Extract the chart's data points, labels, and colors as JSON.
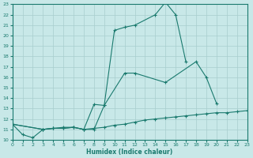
{
  "xlabel": "Humidex (Indice chaleur)",
  "series1_x": [
    0,
    1,
    2,
    3,
    4,
    5,
    6,
    7,
    8,
    9,
    10,
    11,
    12,
    14,
    15,
    16,
    17
  ],
  "series1_y": [
    11.5,
    10.5,
    10.2,
    11.0,
    11.1,
    11.1,
    11.2,
    11.0,
    13.4,
    13.3,
    20.5,
    20.8,
    21.0,
    22.0,
    23.2,
    22.0,
    17.5
  ],
  "series2_x": [
    0,
    3,
    4,
    5,
    6,
    7,
    8,
    9,
    11,
    12,
    15,
    18,
    19,
    20
  ],
  "series2_y": [
    11.5,
    11.0,
    11.1,
    11.2,
    11.2,
    11.0,
    11.0,
    13.3,
    16.4,
    16.4,
    15.5,
    17.5,
    16.0,
    13.5
  ],
  "series3_x": [
    0,
    3,
    4,
    5,
    6,
    7,
    8,
    9,
    10,
    11,
    12,
    13,
    14,
    15,
    16,
    17,
    18,
    19,
    20,
    21,
    22,
    23
  ],
  "series3_y": [
    11.5,
    11.0,
    11.1,
    11.1,
    11.2,
    11.0,
    11.1,
    11.2,
    11.4,
    11.5,
    11.7,
    11.9,
    12.0,
    12.1,
    12.2,
    12.3,
    12.4,
    12.5,
    12.6,
    12.6,
    12.7,
    12.8
  ],
  "color": "#1a7a6e",
  "bg_color": "#c8e8e8",
  "grid_color": "#a8cece",
  "ylim": [
    10,
    23
  ],
  "xlim": [
    0,
    23
  ],
  "yticks": [
    10,
    11,
    12,
    13,
    14,
    15,
    16,
    17,
    18,
    19,
    20,
    21,
    22,
    23
  ],
  "xticks": [
    0,
    1,
    2,
    3,
    4,
    5,
    6,
    7,
    8,
    9,
    10,
    11,
    12,
    13,
    14,
    15,
    16,
    17,
    18,
    19,
    20,
    21,
    22,
    23
  ]
}
